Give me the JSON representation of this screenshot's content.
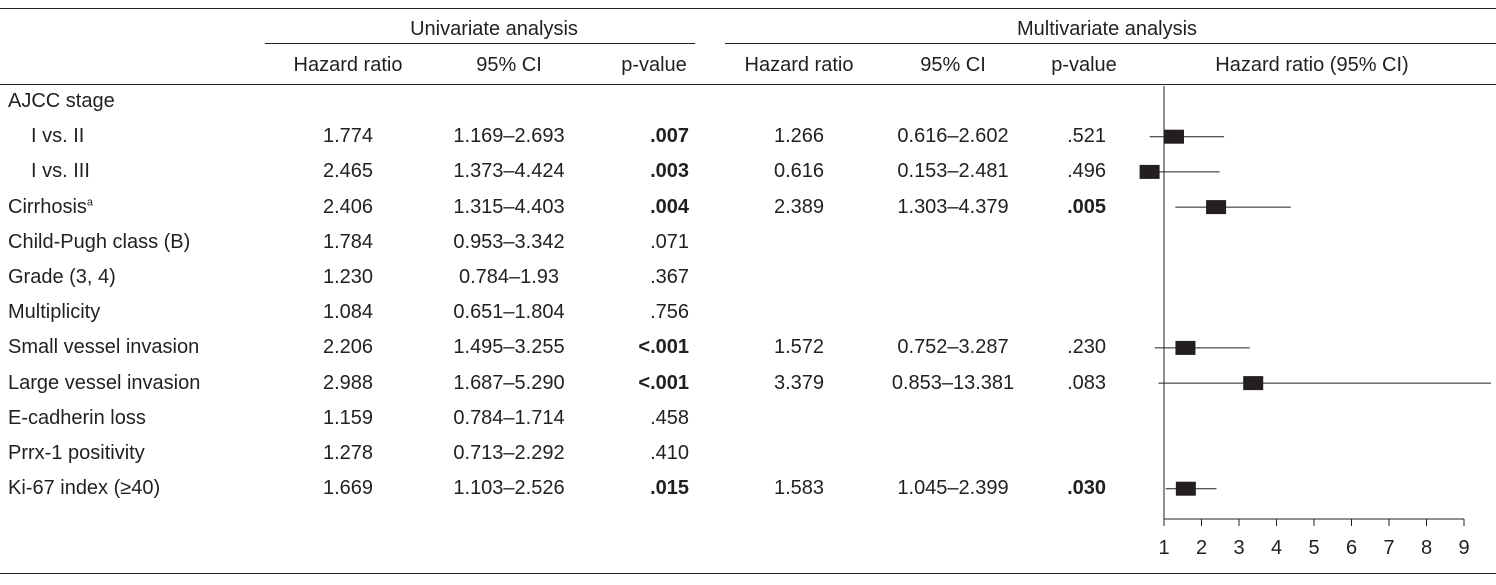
{
  "headers": {
    "univariate": "Univariate analysis",
    "multivariate": "Multivariate analysis",
    "hazard_ratio": "Hazard ratio",
    "ci": "95% CI",
    "p_value": "p-value",
    "forest": "Hazard ratio (95% CI)"
  },
  "rows": [
    {
      "label": "AJCC stage",
      "sup": "",
      "indent": false,
      "uni_hr": "",
      "uni_ci": "",
      "uni_p": "",
      "uni_p_bold": false,
      "multi_hr": "",
      "multi_ci": "",
      "multi_p": "",
      "multi_p_bold": false
    },
    {
      "label": "I vs. II",
      "sup": "",
      "indent": true,
      "uni_hr": "1.774",
      "uni_ci": "1.169–2.693",
      "uni_p": ".007",
      "uni_p_bold": true,
      "multi_hr": "1.266",
      "multi_ci": "0.616–2.602",
      "multi_p": ".521",
      "multi_p_bold": false
    },
    {
      "label": "I vs. III",
      "sup": "",
      "indent": true,
      "uni_hr": "2.465",
      "uni_ci": "1.373–4.424",
      "uni_p": ".003",
      "uni_p_bold": true,
      "multi_hr": "0.616",
      "multi_ci": "0.153–2.481",
      "multi_p": ".496",
      "multi_p_bold": false
    },
    {
      "label": "Cirrhosis",
      "sup": "a",
      "indent": false,
      "uni_hr": "2.406",
      "uni_ci": "1.315–4.403",
      "uni_p": ".004",
      "uni_p_bold": true,
      "multi_hr": "2.389",
      "multi_ci": "1.303–4.379",
      "multi_p": ".005",
      "multi_p_bold": true
    },
    {
      "label": "Child-Pugh class (B)",
      "sup": "",
      "indent": false,
      "uni_hr": "1.784",
      "uni_ci": "0.953–3.342",
      "uni_p": ".071",
      "uni_p_bold": false,
      "multi_hr": "",
      "multi_ci": "",
      "multi_p": "",
      "multi_p_bold": false
    },
    {
      "label": "Grade (3, 4)",
      "sup": "",
      "indent": false,
      "uni_hr": "1.230",
      "uni_ci": "0.784–1.93",
      "uni_p": ".367",
      "uni_p_bold": false,
      "multi_hr": "",
      "multi_ci": "",
      "multi_p": "",
      "multi_p_bold": false
    },
    {
      "label": "Multiplicity",
      "sup": "",
      "indent": false,
      "uni_hr": "1.084",
      "uni_ci": "0.651–1.804",
      "uni_p": ".756",
      "uni_p_bold": false,
      "multi_hr": "",
      "multi_ci": "",
      "multi_p": "",
      "multi_p_bold": false
    },
    {
      "label": "Small vessel invasion",
      "sup": "",
      "indent": false,
      "uni_hr": "2.206",
      "uni_ci": "1.495–3.255",
      "uni_p": "<.001",
      "uni_p_bold": true,
      "multi_hr": "1.572",
      "multi_ci": "0.752–3.287",
      "multi_p": ".230",
      "multi_p_bold": false
    },
    {
      "label": "Large vessel invasion",
      "sup": "",
      "indent": false,
      "uni_hr": "2.988",
      "uni_ci": "1.687–5.290",
      "uni_p": "<.001",
      "uni_p_bold": true,
      "multi_hr": "3.379",
      "multi_ci": "0.853–13.381",
      "multi_p": ".083",
      "multi_p_bold": false
    },
    {
      "label": "E-cadherin loss",
      "sup": "",
      "indent": false,
      "uni_hr": "1.159",
      "uni_ci": "0.784–1.714",
      "uni_p": ".458",
      "uni_p_bold": false,
      "multi_hr": "",
      "multi_ci": "",
      "multi_p": "",
      "multi_p_bold": false
    },
    {
      "label": "Prrx-1 positivity",
      "sup": "",
      "indent": false,
      "uni_hr": "1.278",
      "uni_ci": "0.713–2.292",
      "uni_p": ".410",
      "uni_p_bold": false,
      "multi_hr": "",
      "multi_ci": "",
      "multi_p": "",
      "multi_p_bold": false
    },
    {
      "label": "Ki-67 index (≥40)",
      "sup": "",
      "indent": false,
      "uni_hr": "1.669",
      "uni_ci": "1.103–2.526",
      "uni_p": ".015",
      "uni_p_bold": true,
      "multi_hr": "1.583",
      "multi_ci": "1.045–2.399",
      "multi_p": ".030",
      "multi_p_bold": true
    }
  ],
  "chart_data": {
    "type": "forest",
    "title": "Hazard ratio (95% CI)",
    "xlabel": "",
    "xlim": [
      1,
      9
    ],
    "ticks": [
      "1",
      "2",
      "3",
      "4",
      "5",
      "6",
      "7",
      "8",
      "9"
    ],
    "points": [
      {
        "row": "I vs. II",
        "hr": 1.266,
        "lo": 0.616,
        "hi": 2.602
      },
      {
        "row": "I vs. III",
        "hr": 0.616,
        "lo": 0.153,
        "hi": 2.481
      },
      {
        "row": "Cirrhosis",
        "hr": 2.389,
        "lo": 1.303,
        "hi": 4.379
      },
      {
        "row": "Small vessel invasion",
        "hr": 1.572,
        "lo": 0.752,
        "hi": 3.287
      },
      {
        "row": "Large vessel invasion",
        "hr": 3.379,
        "lo": 0.853,
        "hi": 13.381
      },
      {
        "row": "Ki-67 index (≥40)",
        "hr": 1.583,
        "lo": 1.045,
        "hi": 2.399
      }
    ]
  }
}
